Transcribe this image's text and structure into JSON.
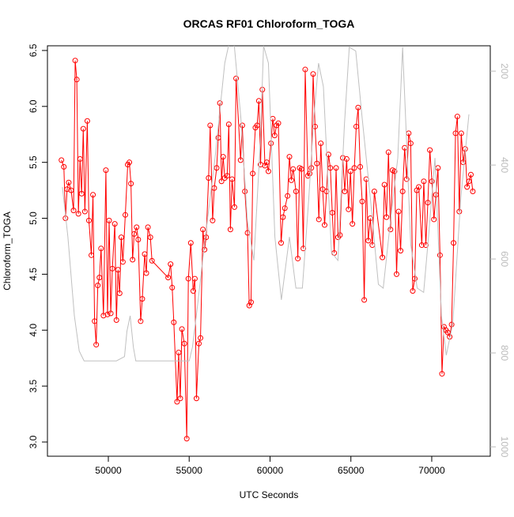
{
  "chart_data": {
    "type": "line",
    "title": "ORCAS RF01 Chloroform_TOGA",
    "x_label": "UTC Seconds",
    "y_label": "Chloroform_TOGA",
    "xlim": [
      46235,
      73620
    ],
    "xticks": [
      50000,
      55000,
      60000,
      65000,
      70000
    ],
    "ylim": [
      2.873,
      6.542
    ],
    "yticks": [
      {
        "value": 3,
        "label": "3.0"
      },
      3.5,
      {
        "value": 4,
        "label": "4.0"
      },
      4.5,
      {
        "value": 5,
        "label": "5.0"
      },
      5.5,
      {
        "value": 6,
        "label": "6.0"
      },
      6.5
    ],
    "y2lim": [
      1020,
      146
    ],
    "y2ticks": [
      200,
      400,
      600,
      800,
      1000
    ],
    "series": [
      {
        "color": "#ff0000",
        "markers": true,
        "x": [
          47100,
          47250,
          47350,
          47450,
          47550,
          47700,
          47850,
          47950,
          48050,
          48150,
          48250,
          48350,
          48450,
          48550,
          48700,
          48800,
          48950,
          49050,
          49150,
          49250,
          49350,
          49450,
          49550,
          49700,
          49850,
          49950,
          50050,
          50150,
          50250,
          50400,
          50500,
          50600,
          50700,
          50800,
          50900,
          51050,
          51200,
          51300,
          51400,
          51500,
          51600,
          51750,
          51850,
          52000,
          52100,
          52250,
          52350,
          52450,
          52600,
          52700,
          53700,
          53850,
          53950,
          54050,
          54250,
          54350,
          54450,
          54550,
          54700,
          54850,
          54950,
          55100,
          55250,
          55350,
          55450,
          55600,
          55700,
          55850,
          55950,
          56050,
          56200,
          56300,
          56450,
          56550,
          56700,
          56800,
          56900,
          57000,
          57100,
          57200,
          57350,
          57450,
          57550,
          57650,
          57800,
          57900,
          58180,
          58285,
          58445,
          58610,
          58715,
          58825,
          58930,
          59095,
          59200,
          59310,
          59415,
          59525,
          59685,
          59795,
          59900,
          60060,
          60170,
          60285,
          60400,
          60515,
          60685,
          60800,
          60915,
          61085,
          61200,
          61315,
          61430,
          61605,
          61720,
          61830,
          61945,
          62060,
          62175,
          62340,
          62450,
          62555,
          62665,
          62785,
          62900,
          63020,
          63140,
          63255,
          63375,
          63495,
          63615,
          63730,
          63850,
          63970,
          64085,
          64205,
          64325,
          64500,
          64620,
          64740,
          64855,
          64975,
          65095,
          65215,
          65330,
          65450,
          65575,
          65700,
          65825,
          65950,
          66075,
          66200,
          66325,
          66450,
          66950,
          67075,
          67200,
          67325,
          67450,
          67575,
          67700,
          67825,
          67950,
          68075,
          68200,
          68325,
          68450,
          68575,
          68700,
          68825,
          68950,
          69075,
          69200,
          69385,
          69510,
          69635,
          69760,
          69885,
          70010,
          70135,
          70260,
          70385,
          70510,
          70635,
          70755,
          70875,
          70990,
          71110,
          71230,
          71350,
          71470,
          71585,
          71705,
          71825,
          71945,
          72065,
          72185,
          72300,
          72420,
          72540
        ],
        "values": [
          5.52,
          5.46,
          5.0,
          5.26,
          5.32,
          5.25,
          5.07,
          6.41,
          6.24,
          5.04,
          5.53,
          5.22,
          5.8,
          5.06,
          5.87,
          4.98,
          4.67,
          5.21,
          4.08,
          3.87,
          4.4,
          4.47,
          4.73,
          4.13,
          5.43,
          4.14,
          4.98,
          4.15,
          4.55,
          4.95,
          4.09,
          4.54,
          4.33,
          4.83,
          4.61,
          5.03,
          5.48,
          5.5,
          5.31,
          4.63,
          4.86,
          4.92,
          4.81,
          4.08,
          4.28,
          4.68,
          4.51,
          4.92,
          4.83,
          4.62,
          4.47,
          4.59,
          4.38,
          4.07,
          3.36,
          3.8,
          3.39,
          4.01,
          3.88,
          3.03,
          4.46,
          4.78,
          4.35,
          4.46,
          3.39,
          3.88,
          3.93,
          4.9,
          4.72,
          4.83,
          5.36,
          5.83,
          4.98,
          5.27,
          5.45,
          5.72,
          6.03,
          5.33,
          5.55,
          5.36,
          5.38,
          5.84,
          4.9,
          5.35,
          5.1,
          6.25,
          5.52,
          5.83,
          5.24,
          4.87,
          4.22,
          4.25,
          5.4,
          5.81,
          5.83,
          6.05,
          5.48,
          6.15,
          5.47,
          5.5,
          5.42,
          5.67,
          5.89,
          5.74,
          5.83,
          5.85,
          4.78,
          5.01,
          5.09,
          5.2,
          5.55,
          5.34,
          5.44,
          5.24,
          4.64,
          5.45,
          5.44,
          4.73,
          6.33,
          5.38,
          5.4,
          5.45,
          6.29,
          5.82,
          5.49,
          4.99,
          5.67,
          5.26,
          4.94,
          5.24,
          5.57,
          5.45,
          5.05,
          4.69,
          5.45,
          4.83,
          4.85,
          5.54,
          5.24,
          5.53,
          5.08,
          5.42,
          4.95,
          5.45,
          5.82,
          5.99,
          5.46,
          5.15,
          4.27,
          5.35,
          4.8,
          5.0,
          4.76,
          5.24,
          4.65,
          5.3,
          5.01,
          5.59,
          4.9,
          5.43,
          5.42,
          4.5,
          5.06,
          4.71,
          5.24,
          5.63,
          5.35,
          5.76,
          5.67,
          4.35,
          4.46,
          5.25,
          5.28,
          4.76,
          5.33,
          4.76,
          5.14,
          5.61,
          5.33,
          4.99,
          5.21,
          5.45,
          4.67,
          3.61,
          4.03,
          4.0,
          3.98,
          3.94,
          4.05,
          4.78,
          5.76,
          5.91,
          5.06,
          5.76,
          5.5,
          5.62,
          5.28,
          5.33,
          5.39,
          5.24
        ]
      },
      {
        "color": "#c0c0c0",
        "axis": "y2",
        "markers": false,
        "x": [
          47160,
          47500,
          47900,
          48200,
          48500,
          49500,
          50500,
          51000,
          51150,
          51350,
          51550,
          51700,
          54000,
          55000,
          55200,
          55500,
          56000,
          56600,
          57200,
          57600,
          57800,
          58200,
          58600,
          59000,
          59400,
          59600,
          59900,
          60300,
          60700,
          61200,
          61600,
          62000,
          62400,
          62700,
          63000,
          63300,
          63800,
          64200,
          64600,
          64900,
          65300,
          65700,
          66200,
          66700,
          67000,
          67500,
          67900,
          68200,
          68400,
          68700,
          69100,
          69500,
          69800,
          70200,
          70600,
          70900,
          71300,
          71800,
          72300
        ],
        "values": [
          447,
          553,
          721,
          796,
          817,
          817,
          817,
          808,
          754,
          721,
          788,
          817,
          817,
          817,
          788,
          704,
          553,
          385,
          183,
          120,
          149,
          301,
          519,
          603,
          351,
          146,
          183,
          553,
          687,
          553,
          662,
          662,
          469,
          301,
          183,
          233,
          586,
          603,
          314,
          149,
          157,
          301,
          469,
          654,
          662,
          502,
          385,
          149,
          314,
          569,
          662,
          671,
          553,
          385,
          721,
          805,
          738,
          469,
          292
        ]
      }
    ]
  }
}
